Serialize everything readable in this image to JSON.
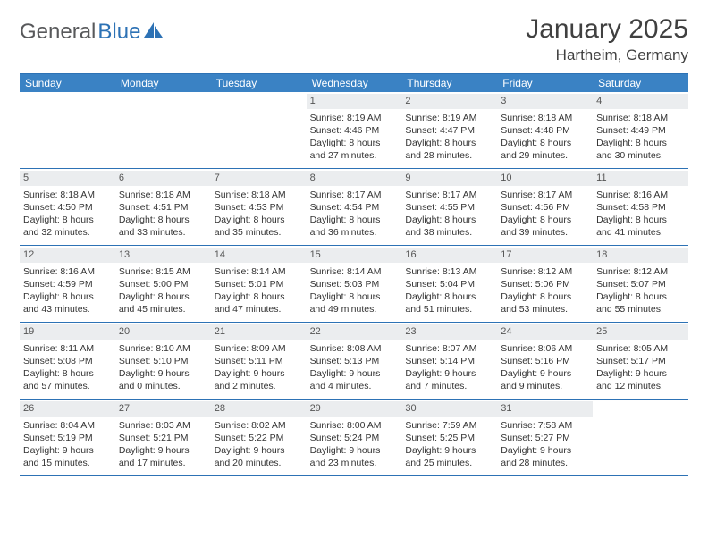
{
  "colors": {
    "header_bg": "#3a82c4",
    "border": "#2d72b5",
    "date_bar_bg": "#ebedef",
    "text": "#333333",
    "title_text": "#404040",
    "logo_gray": "#58595b",
    "logo_blue": "#2d72b5",
    "background": "#ffffff"
  },
  "typography": {
    "body_font": "Arial",
    "title_size_pt": 22,
    "location_size_pt": 13,
    "day_header_size_pt": 9,
    "cell_size_pt": 8
  },
  "logo": {
    "text_a": "General",
    "text_b": "Blue"
  },
  "title": "January 2025",
  "location": "Hartheim, Germany",
  "day_headers": [
    "Sunday",
    "Monday",
    "Tuesday",
    "Wednesday",
    "Thursday",
    "Friday",
    "Saturday"
  ],
  "weeks": [
    [
      {
        "date": "",
        "sunrise": "",
        "sunset": "",
        "daylight": "",
        "empty": true
      },
      {
        "date": "",
        "sunrise": "",
        "sunset": "",
        "daylight": "",
        "empty": true
      },
      {
        "date": "",
        "sunrise": "",
        "sunset": "",
        "daylight": "",
        "empty": true
      },
      {
        "date": "1",
        "sunrise": "Sunrise: 8:19 AM",
        "sunset": "Sunset: 4:46 PM",
        "daylight": "Daylight: 8 hours and 27 minutes."
      },
      {
        "date": "2",
        "sunrise": "Sunrise: 8:19 AM",
        "sunset": "Sunset: 4:47 PM",
        "daylight": "Daylight: 8 hours and 28 minutes."
      },
      {
        "date": "3",
        "sunrise": "Sunrise: 8:18 AM",
        "sunset": "Sunset: 4:48 PM",
        "daylight": "Daylight: 8 hours and 29 minutes."
      },
      {
        "date": "4",
        "sunrise": "Sunrise: 8:18 AM",
        "sunset": "Sunset: 4:49 PM",
        "daylight": "Daylight: 8 hours and 30 minutes."
      }
    ],
    [
      {
        "date": "5",
        "sunrise": "Sunrise: 8:18 AM",
        "sunset": "Sunset: 4:50 PM",
        "daylight": "Daylight: 8 hours and 32 minutes."
      },
      {
        "date": "6",
        "sunrise": "Sunrise: 8:18 AM",
        "sunset": "Sunset: 4:51 PM",
        "daylight": "Daylight: 8 hours and 33 minutes."
      },
      {
        "date": "7",
        "sunrise": "Sunrise: 8:18 AM",
        "sunset": "Sunset: 4:53 PM",
        "daylight": "Daylight: 8 hours and 35 minutes."
      },
      {
        "date": "8",
        "sunrise": "Sunrise: 8:17 AM",
        "sunset": "Sunset: 4:54 PM",
        "daylight": "Daylight: 8 hours and 36 minutes."
      },
      {
        "date": "9",
        "sunrise": "Sunrise: 8:17 AM",
        "sunset": "Sunset: 4:55 PM",
        "daylight": "Daylight: 8 hours and 38 minutes."
      },
      {
        "date": "10",
        "sunrise": "Sunrise: 8:17 AM",
        "sunset": "Sunset: 4:56 PM",
        "daylight": "Daylight: 8 hours and 39 minutes."
      },
      {
        "date": "11",
        "sunrise": "Sunrise: 8:16 AM",
        "sunset": "Sunset: 4:58 PM",
        "daylight": "Daylight: 8 hours and 41 minutes."
      }
    ],
    [
      {
        "date": "12",
        "sunrise": "Sunrise: 8:16 AM",
        "sunset": "Sunset: 4:59 PM",
        "daylight": "Daylight: 8 hours and 43 minutes."
      },
      {
        "date": "13",
        "sunrise": "Sunrise: 8:15 AM",
        "sunset": "Sunset: 5:00 PM",
        "daylight": "Daylight: 8 hours and 45 minutes."
      },
      {
        "date": "14",
        "sunrise": "Sunrise: 8:14 AM",
        "sunset": "Sunset: 5:01 PM",
        "daylight": "Daylight: 8 hours and 47 minutes."
      },
      {
        "date": "15",
        "sunrise": "Sunrise: 8:14 AM",
        "sunset": "Sunset: 5:03 PM",
        "daylight": "Daylight: 8 hours and 49 minutes."
      },
      {
        "date": "16",
        "sunrise": "Sunrise: 8:13 AM",
        "sunset": "Sunset: 5:04 PM",
        "daylight": "Daylight: 8 hours and 51 minutes."
      },
      {
        "date": "17",
        "sunrise": "Sunrise: 8:12 AM",
        "sunset": "Sunset: 5:06 PM",
        "daylight": "Daylight: 8 hours and 53 minutes."
      },
      {
        "date": "18",
        "sunrise": "Sunrise: 8:12 AM",
        "sunset": "Sunset: 5:07 PM",
        "daylight": "Daylight: 8 hours and 55 minutes."
      }
    ],
    [
      {
        "date": "19",
        "sunrise": "Sunrise: 8:11 AM",
        "sunset": "Sunset: 5:08 PM",
        "daylight": "Daylight: 8 hours and 57 minutes."
      },
      {
        "date": "20",
        "sunrise": "Sunrise: 8:10 AM",
        "sunset": "Sunset: 5:10 PM",
        "daylight": "Daylight: 9 hours and 0 minutes."
      },
      {
        "date": "21",
        "sunrise": "Sunrise: 8:09 AM",
        "sunset": "Sunset: 5:11 PM",
        "daylight": "Daylight: 9 hours and 2 minutes."
      },
      {
        "date": "22",
        "sunrise": "Sunrise: 8:08 AM",
        "sunset": "Sunset: 5:13 PM",
        "daylight": "Daylight: 9 hours and 4 minutes."
      },
      {
        "date": "23",
        "sunrise": "Sunrise: 8:07 AM",
        "sunset": "Sunset: 5:14 PM",
        "daylight": "Daylight: 9 hours and 7 minutes."
      },
      {
        "date": "24",
        "sunrise": "Sunrise: 8:06 AM",
        "sunset": "Sunset: 5:16 PM",
        "daylight": "Daylight: 9 hours and 9 minutes."
      },
      {
        "date": "25",
        "sunrise": "Sunrise: 8:05 AM",
        "sunset": "Sunset: 5:17 PM",
        "daylight": "Daylight: 9 hours and 12 minutes."
      }
    ],
    [
      {
        "date": "26",
        "sunrise": "Sunrise: 8:04 AM",
        "sunset": "Sunset: 5:19 PM",
        "daylight": "Daylight: 9 hours and 15 minutes."
      },
      {
        "date": "27",
        "sunrise": "Sunrise: 8:03 AM",
        "sunset": "Sunset: 5:21 PM",
        "daylight": "Daylight: 9 hours and 17 minutes."
      },
      {
        "date": "28",
        "sunrise": "Sunrise: 8:02 AM",
        "sunset": "Sunset: 5:22 PM",
        "daylight": "Daylight: 9 hours and 20 minutes."
      },
      {
        "date": "29",
        "sunrise": "Sunrise: 8:00 AM",
        "sunset": "Sunset: 5:24 PM",
        "daylight": "Daylight: 9 hours and 23 minutes."
      },
      {
        "date": "30",
        "sunrise": "Sunrise: 7:59 AM",
        "sunset": "Sunset: 5:25 PM",
        "daylight": "Daylight: 9 hours and 25 minutes."
      },
      {
        "date": "31",
        "sunrise": "Sunrise: 7:58 AM",
        "sunset": "Sunset: 5:27 PM",
        "daylight": "Daylight: 9 hours and 28 minutes."
      },
      {
        "date": "",
        "sunrise": "",
        "sunset": "",
        "daylight": "",
        "empty": true
      }
    ]
  ]
}
